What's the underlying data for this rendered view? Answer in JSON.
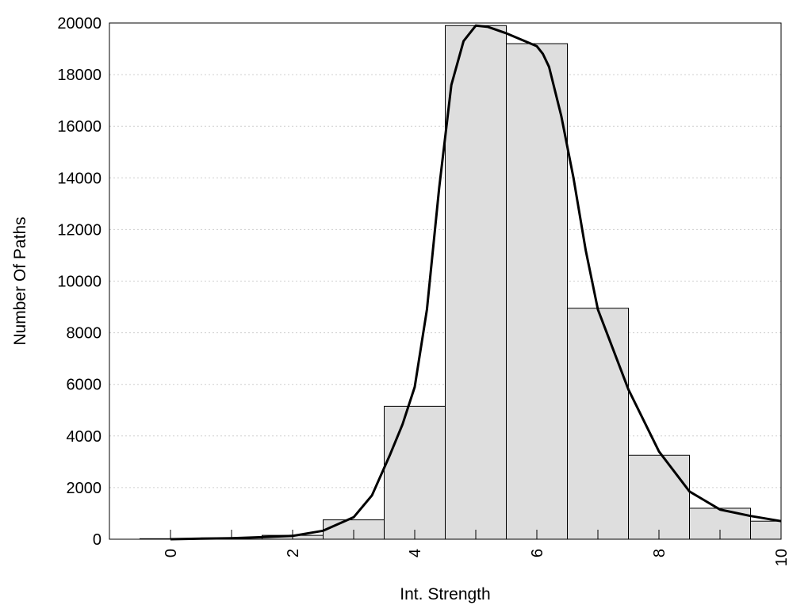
{
  "chart_data": {
    "type": "bar",
    "title": "",
    "xlabel": "Int. Strength",
    "ylabel": "Number Of Paths",
    "xlim": [
      -1,
      10
    ],
    "ylim": [
      0,
      20000
    ],
    "grid": "horizontal dotted",
    "x_ticks": [
      0,
      2,
      4,
      6,
      8,
      10
    ],
    "x_tick_labels": [
      "0",
      "2",
      "4",
      "6",
      "8",
      "10"
    ],
    "y_ticks": [
      0,
      2000,
      4000,
      6000,
      8000,
      10000,
      12000,
      14000,
      16000,
      18000,
      20000
    ],
    "y_tick_labels": [
      "0",
      "2000",
      "4000",
      "6000",
      "8000",
      "10000",
      "12000",
      "14000",
      "16000",
      "18000",
      "20000"
    ],
    "bin_width": 1,
    "categories": [
      0,
      1,
      2,
      3,
      4,
      5,
      6,
      7,
      8,
      9,
      10
    ],
    "values": [
      20,
      50,
      150,
      750,
      5150,
      19900,
      19200,
      8950,
      3250,
      1200,
      700
    ],
    "series": [
      {
        "type": "line",
        "x": [
          0,
          0.5,
          1,
          1.5,
          2,
          2.5,
          3,
          3.3,
          3.6,
          3.8,
          4,
          4.2,
          4.4,
          4.6,
          4.8,
          5,
          5.2,
          5.5,
          5.8,
          6,
          6.1,
          6.2,
          6.4,
          6.6,
          6.8,
          7,
          7.5,
          8,
          8.5,
          9,
          9.5,
          10
        ],
        "y": [
          0,
          20,
          40,
          80,
          130,
          330,
          850,
          1700,
          3300,
          4450,
          5900,
          8900,
          13600,
          17600,
          19300,
          19900,
          19850,
          19600,
          19300,
          19100,
          18800,
          18300,
          16400,
          14000,
          11200,
          8900,
          5800,
          3400,
          1850,
          1150,
          900,
          700
        ]
      }
    ]
  }
}
